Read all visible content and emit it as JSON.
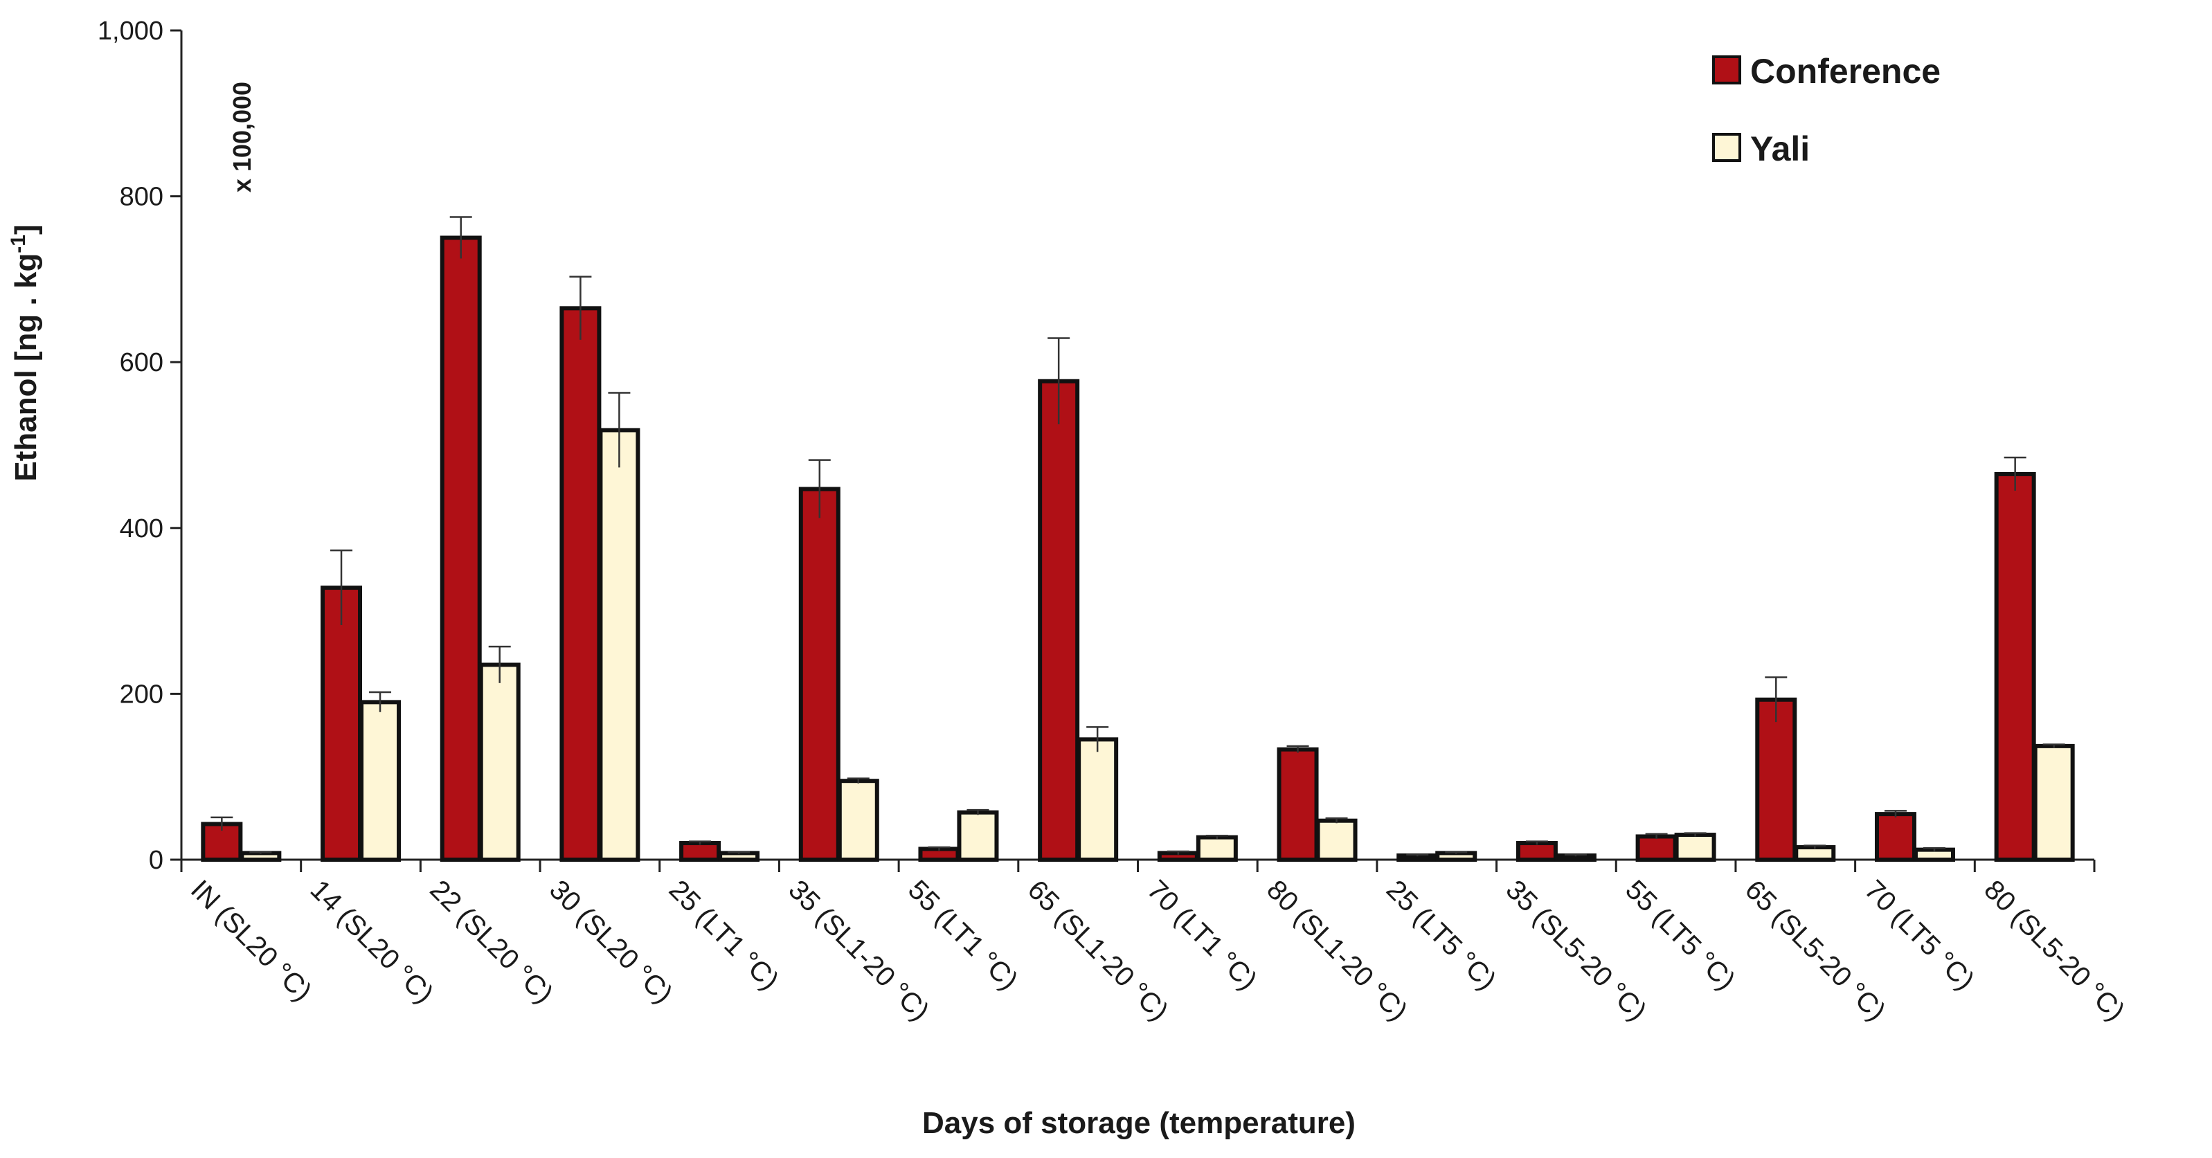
{
  "chart_data": {
    "type": "bar",
    "title": "",
    "xlabel": "Days of storage (temperature)",
    "ylabel": {
      "text": "Ethanol [ng . kg",
      "superscript": "-1",
      "close": "]"
    },
    "multiplier_label": "x 100,000",
    "ylim": [
      0,
      1000
    ],
    "yticks": [
      0,
      200,
      400,
      600,
      800,
      1000
    ],
    "ytick_labels": [
      "0",
      "200",
      "400",
      "600",
      "800",
      "1,000"
    ],
    "categories": [
      "IN (SL20 °C)",
      "14 (SL20 °C)",
      "22 (SL20 °C)",
      "30 (SL20 °C)",
      "25 (LT1 °C)",
      "35 (SL1-20 °C)",
      "55 (LT1 °C)",
      "65 (SL1-20 °C)",
      "70 (LT1 °C)",
      "80 (SL1-20 °C)",
      "25 (LT5 °C)",
      "35 (SL5-20 °C)",
      "55 (LT5 °C)",
      "65 (SL5-20 °C)",
      "70 (LT5 °C)",
      "80 (SL5-20 °C)"
    ],
    "series": [
      {
        "name": "Conference",
        "color": "#b01016",
        "values": [
          43,
          328,
          750,
          665,
          20,
          447,
          13,
          577,
          8,
          133,
          5,
          20,
          28,
          193,
          55,
          465
        ],
        "errors": [
          8,
          45,
          25,
          38,
          2,
          35,
          2,
          52,
          2,
          4,
          1,
          2,
          3,
          27,
          4,
          20
        ]
      },
      {
        "name": "Yali",
        "color": "#fef6d6",
        "values": [
          8,
          190,
          235,
          518,
          8,
          95,
          57,
          145,
          27,
          47,
          8,
          5,
          30,
          15,
          12,
          137
        ],
        "errors": [
          1,
          12,
          22,
          45,
          1,
          3,
          3,
          15,
          2,
          3,
          1,
          1,
          2,
          2,
          2,
          2
        ]
      }
    ],
    "grid": false,
    "legend_position": "top-right"
  }
}
